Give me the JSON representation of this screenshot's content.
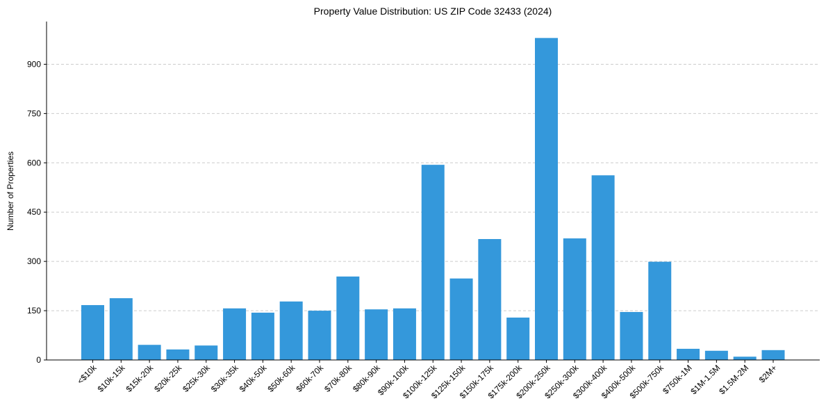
{
  "chart_data": {
    "type": "bar",
    "title": "Property Value Distribution: US ZIP Code 32433 (2024)",
    "xlabel": "",
    "ylabel": "Number of Properties",
    "ylim": [
      0,
      1030
    ],
    "yticks": [
      0,
      150,
      300,
      450,
      600,
      750,
      900
    ],
    "grid": "y-dashed",
    "bar_color": "#3498db",
    "grid_color": "#cccccc",
    "categories": [
      "<$10k",
      "$10k-15k",
      "$15k-20k",
      "$20k-25k",
      "$25k-30k",
      "$30k-35k",
      "$40k-50k",
      "$50k-60k",
      "$60k-70k",
      "$70k-80k",
      "$80k-90k",
      "$90k-100k",
      "$100k-125k",
      "$125k-150k",
      "$150k-175k",
      "$175k-200k",
      "$200k-250k",
      "$250k-300k",
      "$300k-400k",
      "$400k-500k",
      "$500k-750k",
      "$750k-1M",
      "$1M-1.5M",
      "$1.5M-2M",
      "$2M+"
    ],
    "values": [
      167,
      188,
      46,
      32,
      44,
      157,
      144,
      178,
      150,
      254,
      154,
      157,
      594,
      248,
      368,
      129,
      980,
      370,
      562,
      146,
      299,
      34,
      28,
      10,
      30
    ]
  }
}
